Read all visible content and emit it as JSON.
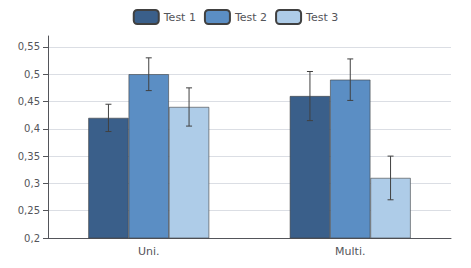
{
  "chart_data": {
    "type": "bar",
    "categories": [
      "Uni.",
      "Multi."
    ],
    "series": [
      {
        "name": "Test 1",
        "color": "#3A5F8A",
        "values": [
          0.42,
          0.46
        ],
        "errors": [
          0.025,
          0.045
        ]
      },
      {
        "name": "Test 2",
        "color": "#5B8EC4",
        "values": [
          0.5,
          0.49
        ],
        "errors": [
          0.03,
          0.038
        ]
      },
      {
        "name": "Test 3",
        "color": "#AECCE8",
        "values": [
          0.44,
          0.31
        ],
        "errors": [
          0.035,
          0.04
        ]
      }
    ],
    "ylim": [
      0.2,
      0.57
    ],
    "yticks": [
      {
        "value": 0.2,
        "label": "0,2"
      },
      {
        "value": 0.25,
        "label": "0,25"
      },
      {
        "value": 0.3,
        "label": "0,3"
      },
      {
        "value": 0.35,
        "label": "0,35"
      },
      {
        "value": 0.4,
        "label": "0,4"
      },
      {
        "value": 0.45,
        "label": "0,45"
      },
      {
        "value": 0.5,
        "label": "0,5"
      },
      {
        "value": 0.55,
        "label": "0,55"
      }
    ],
    "grid": true,
    "legend": "top"
  }
}
